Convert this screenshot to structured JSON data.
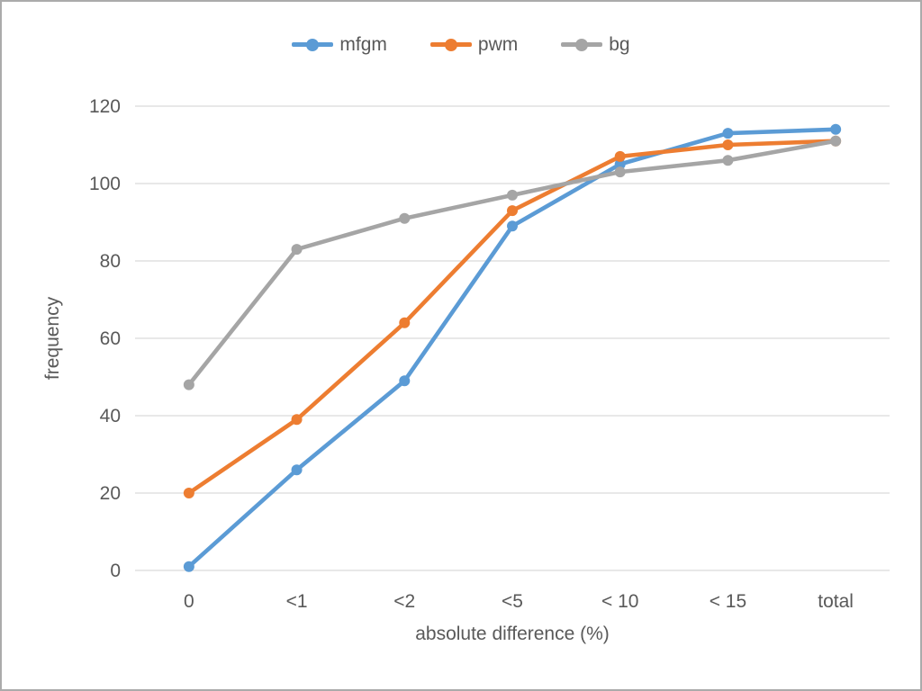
{
  "figure": {
    "background": "#FFFFFF",
    "border_color": "#ABABAB",
    "text_color": "#595959",
    "gridline_color": "#D9D9D9"
  },
  "chart_data": {
    "type": "line",
    "title": "",
    "xlabel": "absolute difference (%)",
    "ylabel": "frequency",
    "categories": [
      "0",
      "<1",
      "<2",
      "<5",
      "< 10",
      "< 15",
      "total"
    ],
    "series": [
      {
        "name": "mfgm",
        "color": "#5B9BD5",
        "values": [
          1,
          26,
          49,
          89,
          105,
          113,
          114
        ]
      },
      {
        "name": "pwm",
        "color": "#ED7D31",
        "values": [
          20,
          39,
          64,
          93,
          107,
          110,
          111
        ]
      },
      {
        "name": "bg",
        "color": "#A5A5A5",
        "values": [
          48,
          83,
          91,
          97,
          103,
          106,
          111
        ]
      }
    ],
    "ylim": [
      0,
      120
    ],
    "ytick_step": 20,
    "yticks": [
      0,
      20,
      40,
      60,
      80,
      100,
      120
    ],
    "grid": "horizontal",
    "legend_position": "top",
    "marker": "circle"
  }
}
